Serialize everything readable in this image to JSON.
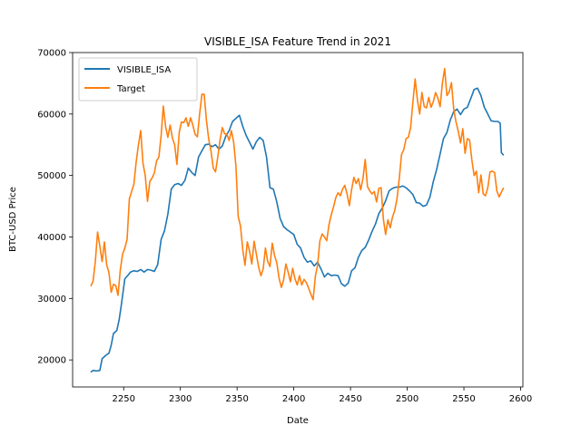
{
  "chart_data": {
    "type": "line",
    "title": "VISIBLE_ISA Feature Trend in 2021",
    "xlabel": "Date",
    "ylabel": "BTC-USD Price",
    "xlim": [
      2205,
      2602
    ],
    "ylim": [
      15600,
      70000
    ],
    "xticks": [
      2250,
      2300,
      2350,
      2400,
      2450,
      2500,
      2550,
      2600
    ],
    "yticks": [
      20000,
      30000,
      40000,
      50000,
      60000,
      70000
    ],
    "grid": false,
    "legend": "top-left",
    "series": [
      {
        "name": "VISIBLE_ISA",
        "color": "#1f77b4",
        "points": [
          [
            2221,
            18000
          ],
          [
            2223,
            18300
          ],
          [
            2226,
            18200
          ],
          [
            2229,
            18300
          ],
          [
            2231,
            20200
          ],
          [
            2234,
            20700
          ],
          [
            2237,
            21100
          ],
          [
            2239,
            22400
          ],
          [
            2241,
            24300
          ],
          [
            2244,
            24800
          ],
          [
            2246,
            26500
          ],
          [
            2248,
            29000
          ],
          [
            2251,
            33200
          ],
          [
            2254,
            33800
          ],
          [
            2256,
            34300
          ],
          [
            2259,
            34500
          ],
          [
            2262,
            34400
          ],
          [
            2265,
            34700
          ],
          [
            2268,
            34300
          ],
          [
            2271,
            34700
          ],
          [
            2274,
            34600
          ],
          [
            2277,
            34400
          ],
          [
            2280,
            35500
          ],
          [
            2283,
            39600
          ],
          [
            2286,
            41000
          ],
          [
            2289,
            43700
          ],
          [
            2292,
            47800
          ],
          [
            2295,
            48500
          ],
          [
            2298,
            48700
          ],
          [
            2301,
            48400
          ],
          [
            2304,
            49200
          ],
          [
            2307,
            51200
          ],
          [
            2310,
            50500
          ],
          [
            2313,
            50000
          ],
          [
            2316,
            53000
          ],
          [
            2319,
            54000
          ],
          [
            2322,
            55000
          ],
          [
            2325,
            55100
          ],
          [
            2328,
            54700
          ],
          [
            2331,
            55000
          ],
          [
            2334,
            54300
          ],
          [
            2337,
            54800
          ],
          [
            2340,
            56400
          ],
          [
            2343,
            57300
          ],
          [
            2346,
            58800
          ],
          [
            2349,
            59300
          ],
          [
            2352,
            59800
          ],
          [
            2355,
            58000
          ],
          [
            2358,
            56500
          ],
          [
            2361,
            55400
          ],
          [
            2364,
            54300
          ],
          [
            2367,
            55500
          ],
          [
            2370,
            56200
          ],
          [
            2373,
            55700
          ],
          [
            2376,
            53000
          ],
          [
            2379,
            48000
          ],
          [
            2382,
            47800
          ],
          [
            2385,
            45700
          ],
          [
            2388,
            43000
          ],
          [
            2391,
            41700
          ],
          [
            2394,
            41200
          ],
          [
            2397,
            40800
          ],
          [
            2400,
            40400
          ],
          [
            2403,
            38800
          ],
          [
            2406,
            38200
          ],
          [
            2409,
            36700
          ],
          [
            2412,
            35900
          ],
          [
            2415,
            36100
          ],
          [
            2418,
            35300
          ],
          [
            2421,
            35900
          ],
          [
            2424,
            34800
          ],
          [
            2427,
            33500
          ],
          [
            2430,
            34100
          ],
          [
            2433,
            33700
          ],
          [
            2436,
            33800
          ],
          [
            2439,
            33700
          ],
          [
            2442,
            32400
          ],
          [
            2445,
            32000
          ],
          [
            2448,
            32500
          ],
          [
            2451,
            34500
          ],
          [
            2454,
            35000
          ],
          [
            2457,
            36700
          ],
          [
            2460,
            37800
          ],
          [
            2463,
            38300
          ],
          [
            2466,
            39500
          ],
          [
            2469,
            40900
          ],
          [
            2472,
            42100
          ],
          [
            2475,
            43800
          ],
          [
            2478,
            44700
          ],
          [
            2481,
            45900
          ],
          [
            2484,
            47500
          ],
          [
            2487,
            47900
          ],
          [
            2490,
            48100
          ],
          [
            2493,
            48100
          ],
          [
            2496,
            48300
          ],
          [
            2499,
            48000
          ],
          [
            2502,
            47500
          ],
          [
            2505,
            46900
          ],
          [
            2508,
            45600
          ],
          [
            2511,
            45500
          ],
          [
            2514,
            45000
          ],
          [
            2517,
            45200
          ],
          [
            2520,
            46500
          ],
          [
            2523,
            49000
          ],
          [
            2526,
            51000
          ],
          [
            2529,
            53500
          ],
          [
            2532,
            56000
          ],
          [
            2535,
            57000
          ],
          [
            2538,
            59000
          ],
          [
            2541,
            60400
          ],
          [
            2544,
            60800
          ],
          [
            2547,
            59900
          ],
          [
            2550,
            60800
          ],
          [
            2553,
            61100
          ],
          [
            2556,
            62500
          ],
          [
            2559,
            64000
          ],
          [
            2562,
            64200
          ],
          [
            2565,
            63000
          ],
          [
            2568,
            61100
          ],
          [
            2571,
            60000
          ],
          [
            2574,
            58900
          ],
          [
            2577,
            58800
          ],
          [
            2580,
            58800
          ],
          [
            2582,
            58500
          ],
          [
            2583,
            53700
          ],
          [
            2585,
            53300
          ]
        ]
      },
      {
        "name": "Target",
        "color": "#ff7f0e",
        "points": [
          [
            2221,
            32000
          ],
          [
            2223,
            32800
          ],
          [
            2225,
            36000
          ],
          [
            2227,
            40800
          ],
          [
            2229,
            38500
          ],
          [
            2231,
            36000
          ],
          [
            2233,
            39200
          ],
          [
            2235,
            35500
          ],
          [
            2237,
            34200
          ],
          [
            2239,
            31000
          ],
          [
            2241,
            32300
          ],
          [
            2243,
            32100
          ],
          [
            2245,
            30500
          ],
          [
            2247,
            34600
          ],
          [
            2249,
            37200
          ],
          [
            2251,
            38200
          ],
          [
            2253,
            39600
          ],
          [
            2255,
            46200
          ],
          [
            2257,
            47400
          ],
          [
            2259,
            48600
          ],
          [
            2261,
            52200
          ],
          [
            2263,
            55000
          ],
          [
            2265,
            57300
          ],
          [
            2267,
            52000
          ],
          [
            2269,
            50000
          ],
          [
            2271,
            45800
          ],
          [
            2273,
            49000
          ],
          [
            2275,
            49600
          ],
          [
            2277,
            50400
          ],
          [
            2279,
            52400
          ],
          [
            2281,
            53000
          ],
          [
            2283,
            56500
          ],
          [
            2285,
            61300
          ],
          [
            2287,
            58000
          ],
          [
            2289,
            56200
          ],
          [
            2291,
            58200
          ],
          [
            2293,
            56100
          ],
          [
            2295,
            55000
          ],
          [
            2297,
            51800
          ],
          [
            2299,
            57000
          ],
          [
            2301,
            58700
          ],
          [
            2303,
            58600
          ],
          [
            2305,
            59400
          ],
          [
            2307,
            58000
          ],
          [
            2309,
            59400
          ],
          [
            2311,
            58200
          ],
          [
            2313,
            56700
          ],
          [
            2315,
            56300
          ],
          [
            2317,
            60000
          ],
          [
            2319,
            63200
          ],
          [
            2321,
            63200
          ],
          [
            2323,
            59000
          ],
          [
            2325,
            55900
          ],
          [
            2327,
            54000
          ],
          [
            2329,
            51200
          ],
          [
            2331,
            50600
          ],
          [
            2333,
            53000
          ],
          [
            2335,
            55800
          ],
          [
            2337,
            57800
          ],
          [
            2339,
            56800
          ],
          [
            2341,
            56700
          ],
          [
            2343,
            55700
          ],
          [
            2345,
            57300
          ],
          [
            2347,
            55400
          ],
          [
            2349,
            51500
          ],
          [
            2351,
            43300
          ],
          [
            2353,
            41800
          ],
          [
            2355,
            38000
          ],
          [
            2357,
            35400
          ],
          [
            2359,
            39200
          ],
          [
            2361,
            37700
          ],
          [
            2363,
            35600
          ],
          [
            2365,
            39300
          ],
          [
            2367,
            37200
          ],
          [
            2369,
            35100
          ],
          [
            2371,
            33700
          ],
          [
            2373,
            34800
          ],
          [
            2375,
            38200
          ],
          [
            2377,
            36000
          ],
          [
            2379,
            35200
          ],
          [
            2381,
            39000
          ],
          [
            2383,
            37000
          ],
          [
            2385,
            35800
          ],
          [
            2387,
            33300
          ],
          [
            2389,
            31800
          ],
          [
            2391,
            33000
          ],
          [
            2393,
            35600
          ],
          [
            2395,
            34300
          ],
          [
            2397,
            32700
          ],
          [
            2399,
            34900
          ],
          [
            2401,
            33200
          ],
          [
            2403,
            32200
          ],
          [
            2405,
            33700
          ],
          [
            2407,
            32200
          ],
          [
            2409,
            33100
          ],
          [
            2411,
            32600
          ],
          [
            2413,
            31700
          ],
          [
            2415,
            30700
          ],
          [
            2417,
            29800
          ],
          [
            2419,
            33600
          ],
          [
            2421,
            35500
          ],
          [
            2423,
            39400
          ],
          [
            2425,
            40500
          ],
          [
            2427,
            40000
          ],
          [
            2429,
            39400
          ],
          [
            2431,
            42000
          ],
          [
            2433,
            43600
          ],
          [
            2435,
            44900
          ],
          [
            2437,
            46400
          ],
          [
            2439,
            47200
          ],
          [
            2441,
            46700
          ],
          [
            2443,
            47800
          ],
          [
            2445,
            48400
          ],
          [
            2447,
            47000
          ],
          [
            2449,
            45100
          ],
          [
            2451,
            47700
          ],
          [
            2453,
            49700
          ],
          [
            2455,
            48700
          ],
          [
            2457,
            49500
          ],
          [
            2459,
            47700
          ],
          [
            2461,
            49500
          ],
          [
            2463,
            52600
          ],
          [
            2465,
            48200
          ],
          [
            2467,
            47500
          ],
          [
            2469,
            47000
          ],
          [
            2471,
            47400
          ],
          [
            2473,
            45700
          ],
          [
            2475,
            47900
          ],
          [
            2477,
            48000
          ],
          [
            2479,
            42900
          ],
          [
            2481,
            40400
          ],
          [
            2483,
            42800
          ],
          [
            2485,
            41500
          ],
          [
            2487,
            43200
          ],
          [
            2489,
            44300
          ],
          [
            2491,
            46200
          ],
          [
            2493,
            49500
          ],
          [
            2495,
            53400
          ],
          [
            2497,
            54200
          ],
          [
            2499,
            56000
          ],
          [
            2501,
            56200
          ],
          [
            2503,
            57800
          ],
          [
            2505,
            61900
          ],
          [
            2507,
            65700
          ],
          [
            2509,
            62300
          ],
          [
            2511,
            60000
          ],
          [
            2513,
            63500
          ],
          [
            2515,
            61200
          ],
          [
            2517,
            61000
          ],
          [
            2519,
            62700
          ],
          [
            2521,
            61100
          ],
          [
            2523,
            62000
          ],
          [
            2525,
            63500
          ],
          [
            2527,
            62600
          ],
          [
            2529,
            61200
          ],
          [
            2531,
            65000
          ],
          [
            2533,
            67400
          ],
          [
            2535,
            63000
          ],
          [
            2537,
            63600
          ],
          [
            2539,
            65100
          ],
          [
            2541,
            60800
          ],
          [
            2543,
            58700
          ],
          [
            2545,
            57200
          ],
          [
            2547,
            55300
          ],
          [
            2549,
            57600
          ],
          [
            2551,
            53600
          ],
          [
            2553,
            56000
          ],
          [
            2555,
            55800
          ],
          [
            2557,
            52500
          ],
          [
            2559,
            50000
          ],
          [
            2561,
            50700
          ],
          [
            2563,
            47200
          ],
          [
            2565,
            50100
          ],
          [
            2567,
            47000
          ],
          [
            2569,
            46700
          ],
          [
            2571,
            48000
          ],
          [
            2573,
            50600
          ],
          [
            2575,
            50700
          ],
          [
            2577,
            50500
          ],
          [
            2579,
            47500
          ],
          [
            2581,
            46500
          ],
          [
            2583,
            47300
          ],
          [
            2585,
            48000
          ]
        ]
      }
    ]
  }
}
